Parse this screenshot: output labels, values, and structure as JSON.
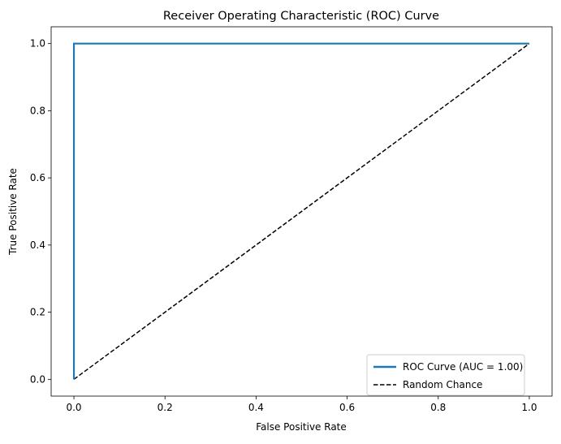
{
  "chart_data": {
    "type": "line",
    "title": "Receiver Operating Characteristic (ROC) Curve",
    "xlabel": "False Positive Rate",
    "ylabel": "True Positive Rate",
    "xlim": [
      -0.05,
      1.05
    ],
    "ylim": [
      -0.05,
      1.05
    ],
    "xticks": [
      0.0,
      0.2,
      0.4,
      0.6,
      0.8,
      1.0
    ],
    "yticks": [
      0.0,
      0.2,
      0.4,
      0.6,
      0.8,
      1.0
    ],
    "xtick_labels": [
      "0.0",
      "0.2",
      "0.4",
      "0.6",
      "0.8",
      "1.0"
    ],
    "ytick_labels": [
      "0.0",
      "0.2",
      "0.4",
      "0.6",
      "0.8",
      "1.0"
    ],
    "grid": false,
    "legend_position": "lower-right",
    "series": [
      {
        "name": "ROC Curve (AUC = 1.00)",
        "x": [
          0.0,
          0.0,
          1.0
        ],
        "y": [
          0.0,
          1.0,
          1.0
        ],
        "color": "#1f77b4",
        "line_style": "solid"
      },
      {
        "name": "Random Chance",
        "x": [
          0.0,
          1.0
        ],
        "y": [
          0.0,
          1.0
        ],
        "color": "#000000",
        "line_style": "dashed"
      }
    ]
  }
}
